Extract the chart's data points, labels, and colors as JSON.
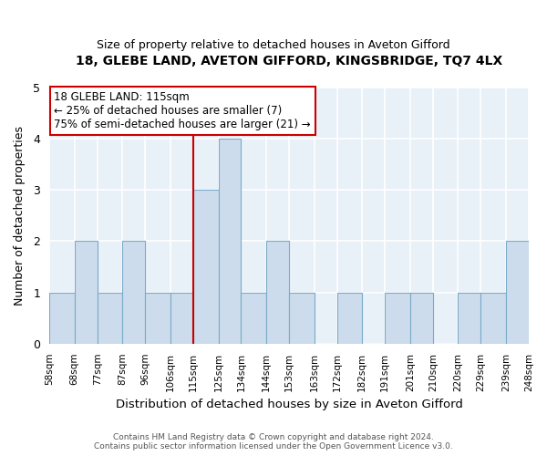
{
  "title": "18, GLEBE LAND, AVETON GIFFORD, KINGSBRIDGE, TQ7 4LX",
  "subtitle": "Size of property relative to detached houses in Aveton Gifford",
  "xlabel": "Distribution of detached houses by size in Aveton Gifford",
  "ylabel": "Number of detached properties",
  "bin_edges": [
    58,
    68,
    77,
    87,
    96,
    106,
    115,
    125,
    134,
    144,
    153,
    163,
    172,
    182,
    191,
    201,
    210,
    220,
    229,
    239,
    248
  ],
  "bar_heights": [
    1,
    2,
    1,
    2,
    1,
    1,
    3,
    4,
    1,
    2,
    1,
    0,
    1,
    0,
    1,
    1,
    0,
    1,
    1,
    2
  ],
  "bar_color": "#ccdcec",
  "bar_edgecolor": "#7aaac8",
  "vline_x": 115,
  "vline_color": "#cc0000",
  "ylim": [
    0,
    5
  ],
  "yticks": [
    0,
    1,
    2,
    3,
    4,
    5
  ],
  "annotation_title": "18 GLEBE LAND: 115sqm",
  "annotation_line1": "← 25% of detached houses are smaller (7)",
  "annotation_line2": "75% of semi-detached houses are larger (21) →",
  "annotation_box_color": "#ffffff",
  "annotation_border_color": "#cc0000",
  "footer1": "Contains HM Land Registry data © Crown copyright and database right 2024.",
  "footer2": "Contains public sector information licensed under the Open Government Licence v3.0.",
  "tick_labels": [
    "58sqm",
    "68sqm",
    "77sqm",
    "87sqm",
    "96sqm",
    "106sqm",
    "115sqm",
    "125sqm",
    "134sqm",
    "144sqm",
    "153sqm",
    "163sqm",
    "172sqm",
    "182sqm",
    "191sqm",
    "201sqm",
    "210sqm",
    "220sqm",
    "229sqm",
    "239sqm",
    "248sqm"
  ],
  "background_color": "#ffffff",
  "plot_bg_color": "#e8f0f8",
  "grid_color": "#ffffff",
  "figsize": [
    6.0,
    5.0
  ],
  "dpi": 100
}
